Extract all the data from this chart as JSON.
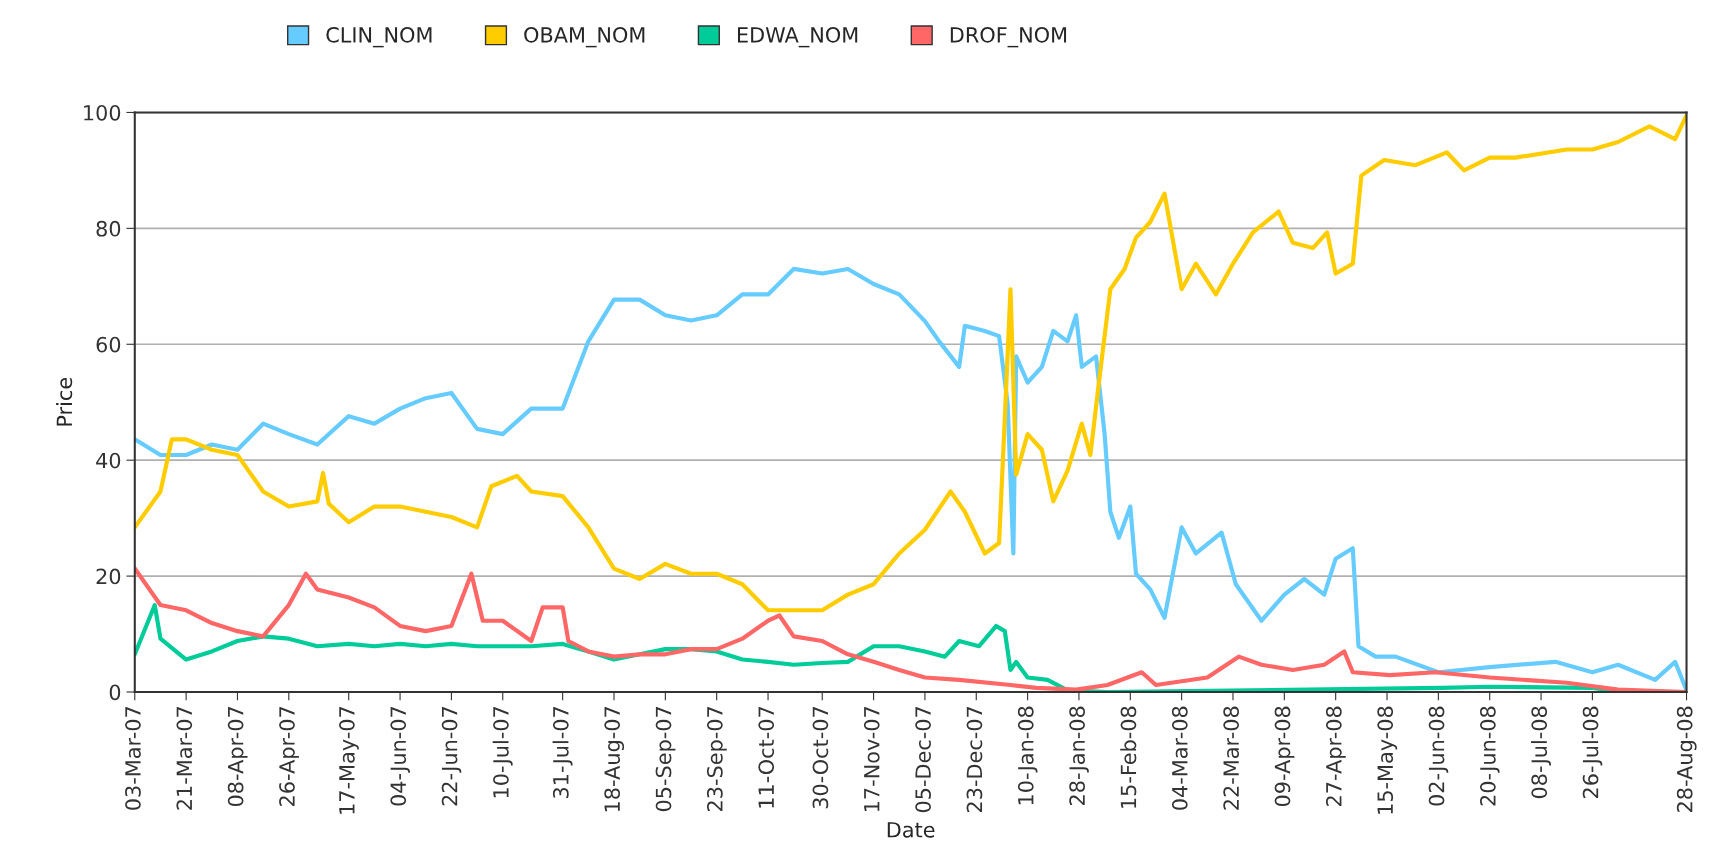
{
  "chart_data": {
    "type": "line",
    "xlabel": "Date",
    "ylabel": "Price",
    "legend": "top",
    "grid": "y",
    "marker": "none",
    "line_style": "solid",
    "xlim": [
      "2007-03-03",
      "2008-08-28"
    ],
    "ylim": [
      0,
      100
    ],
    "yticks": [
      0,
      20,
      40,
      60,
      80,
      100
    ],
    "xticks": [
      {
        "value": "2007-03-03",
        "label": "03-Mar-07"
      },
      {
        "value": "2007-03-21",
        "label": "21-Mar-07"
      },
      {
        "value": "2007-04-08",
        "label": "08-Apr-07"
      },
      {
        "value": "2007-04-26",
        "label": "26-Apr-07"
      },
      {
        "value": "2007-05-17",
        "label": "17-May-07"
      },
      {
        "value": "2007-06-04",
        "label": "04-Jun-07"
      },
      {
        "value": "2007-06-22",
        "label": "22-Jun-07"
      },
      {
        "value": "2007-07-10",
        "label": "10-Jul-07"
      },
      {
        "value": "2007-07-31",
        "label": "31-Jul-07"
      },
      {
        "value": "2007-08-18",
        "label": "18-Aug-07"
      },
      {
        "value": "2007-09-05",
        "label": "05-Sep-07"
      },
      {
        "value": "2007-09-23",
        "label": "23-Sep-07"
      },
      {
        "value": "2007-10-11",
        "label": "11-Oct-07"
      },
      {
        "value": "2007-10-30",
        "label": "30-Oct-07"
      },
      {
        "value": "2007-11-17",
        "label": "17-Nov-07"
      },
      {
        "value": "2007-12-05",
        "label": "05-Dec-07"
      },
      {
        "value": "2007-12-23",
        "label": "23-Dec-07"
      },
      {
        "value": "2008-01-10",
        "label": "10-Jan-08"
      },
      {
        "value": "2008-01-28",
        "label": "28-Jan-08"
      },
      {
        "value": "2008-02-15",
        "label": "15-Feb-08"
      },
      {
        "value": "2008-03-04",
        "label": "04-Mar-08"
      },
      {
        "value": "2008-03-22",
        "label": "22-Mar-08"
      },
      {
        "value": "2008-04-09",
        "label": "09-Apr-08"
      },
      {
        "value": "2008-04-27",
        "label": "27-Apr-08"
      },
      {
        "value": "2008-05-15",
        "label": "15-May-08"
      },
      {
        "value": "2008-06-02",
        "label": "02-Jun-08"
      },
      {
        "value": "2008-06-20",
        "label": "20-Jun-08"
      },
      {
        "value": "2008-07-08",
        "label": "08-Jul-08"
      },
      {
        "value": "2008-07-26",
        "label": "26-Jul-08"
      },
      {
        "value": "2008-08-28",
        "label": "28-Aug-08"
      }
    ],
    "series": [
      {
        "name": "CLIN_NOM",
        "color": "#66ccff",
        "x": [
          "2007-03-03",
          "2007-03-12",
          "2007-03-21",
          "2007-03-30",
          "2007-04-08",
          "2007-04-17",
          "2007-04-26",
          "2007-05-06",
          "2007-05-17",
          "2007-05-26",
          "2007-06-04",
          "2007-06-13",
          "2007-06-22",
          "2007-07-01",
          "2007-07-10",
          "2007-07-20",
          "2007-07-31",
          "2007-08-09",
          "2007-08-18",
          "2007-08-27",
          "2007-09-05",
          "2007-09-14",
          "2007-09-23",
          "2007-10-02",
          "2007-10-11",
          "2007-10-20",
          "2007-10-30",
          "2007-11-08",
          "2007-11-17",
          "2007-11-26",
          "2007-12-05",
          "2007-12-10",
          "2007-12-17",
          "2007-12-19",
          "2007-12-26",
          "2007-12-31",
          "2008-01-03",
          "2008-01-05",
          "2008-01-06",
          "2008-01-10",
          "2008-01-15",
          "2008-01-19",
          "2008-01-24",
          "2008-01-27",
          "2008-01-29",
          "2008-02-03",
          "2008-02-06",
          "2008-02-08",
          "2008-02-11",
          "2008-02-15",
          "2008-02-17",
          "2008-02-22",
          "2008-02-27",
          "2008-03-04",
          "2008-03-09",
          "2008-03-18",
          "2008-03-23",
          "2008-04-01",
          "2008-04-09",
          "2008-04-16",
          "2008-04-23",
          "2008-04-27",
          "2008-05-03",
          "2008-05-05",
          "2008-05-11",
          "2008-05-18",
          "2008-06-02",
          "2008-06-20",
          "2008-07-13",
          "2008-07-26",
          "2008-08-04",
          "2008-08-17",
          "2008-08-24",
          "2008-08-28"
        ],
        "values": [
          43.6,
          40.9,
          40.9,
          42.7,
          41.8,
          46.3,
          44.5,
          42.7,
          47.6,
          46.3,
          48.9,
          50.7,
          51.6,
          45.4,
          44.5,
          48.9,
          48.9,
          60.5,
          67.7,
          67.7,
          65.0,
          64.1,
          65.0,
          68.6,
          68.6,
          73.0,
          72.2,
          73.0,
          70.4,
          68.6,
          64.0,
          60.5,
          56.1,
          63.2,
          62.3,
          61.4,
          49.8,
          23.9,
          57.9,
          53.4,
          56.1,
          62.3,
          60.5,
          65.0,
          56.1,
          57.9,
          44.5,
          31.1,
          26.6,
          32.0,
          20.4,
          17.7,
          12.8,
          28.4,
          23.9,
          27.5,
          18.6,
          12.3,
          16.8,
          19.5,
          16.8,
          23.0,
          24.8,
          7.9,
          6.1,
          6.1,
          3.4,
          4.3,
          5.2,
          3.4,
          4.7,
          2.1,
          5.2,
          0.3
        ]
      },
      {
        "name": "OBAM_NOM",
        "color": "#ffcc00",
        "x": [
          "2007-03-03",
          "2007-03-12",
          "2007-03-16",
          "2007-03-21",
          "2007-03-30",
          "2007-04-08",
          "2007-04-17",
          "2007-04-26",
          "2007-05-06",
          "2007-05-08",
          "2007-05-10",
          "2007-05-17",
          "2007-05-26",
          "2007-06-04",
          "2007-06-13",
          "2007-06-22",
          "2007-07-01",
          "2007-07-06",
          "2007-07-15",
          "2007-07-20",
          "2007-07-31",
          "2007-08-09",
          "2007-08-18",
          "2007-08-27",
          "2007-09-05",
          "2007-09-14",
          "2007-09-23",
          "2007-10-02",
          "2007-10-11",
          "2007-10-20",
          "2007-10-30",
          "2007-11-08",
          "2007-11-17",
          "2007-11-26",
          "2007-12-05",
          "2007-12-14",
          "2007-12-19",
          "2007-12-26",
          "2007-12-31",
          "2008-01-02",
          "2008-01-04",
          "2008-01-06",
          "2008-01-10",
          "2008-01-15",
          "2008-01-19",
          "2008-01-24",
          "2008-01-29",
          "2008-02-01",
          "2008-02-04",
          "2008-02-08",
          "2008-02-13",
          "2008-02-17",
          "2008-02-22",
          "2008-02-27",
          "2008-03-04",
          "2008-03-09",
          "2008-03-16",
          "2008-03-22",
          "2008-03-29",
          "2008-04-07",
          "2008-04-12",
          "2008-04-19",
          "2008-04-24",
          "2008-04-27",
          "2008-05-03",
          "2008-05-06",
          "2008-05-14",
          "2008-05-25",
          "2008-06-05",
          "2008-06-11",
          "2008-06-20",
          "2008-06-29",
          "2008-07-17",
          "2008-07-26",
          "2008-08-04",
          "2008-08-15",
          "2008-08-24",
          "2008-08-28"
        ],
        "values": [
          28.4,
          34.6,
          43.6,
          43.6,
          41.8,
          40.9,
          34.6,
          32.0,
          32.9,
          37.8,
          32.5,
          29.3,
          32.0,
          32.0,
          31.1,
          30.2,
          28.4,
          35.5,
          37.3,
          34.6,
          33.8,
          28.4,
          21.3,
          19.5,
          22.1,
          20.4,
          20.4,
          18.6,
          14.1,
          14.1,
          14.1,
          16.8,
          18.6,
          23.9,
          28.0,
          34.6,
          31.1,
          23.9,
          25.7,
          47.1,
          69.5,
          37.5,
          44.5,
          41.8,
          32.9,
          38.2,
          46.3,
          40.9,
          53.4,
          69.5,
          73.0,
          78.4,
          81.1,
          86.0,
          69.5,
          73.9,
          68.6,
          73.9,
          79.3,
          82.9,
          77.5,
          76.6,
          79.3,
          72.2,
          73.9,
          89.1,
          91.8,
          90.9,
          93.1,
          90.0,
          92.2,
          92.2,
          93.6,
          93.6,
          94.9,
          97.6,
          95.4,
          99.5
        ]
      },
      {
        "name": "EDWA_NOM",
        "color": "#00cc99",
        "x": [
          "2007-03-03",
          "2007-03-10",
          "2007-03-12",
          "2007-03-21",
          "2007-03-30",
          "2007-04-08",
          "2007-04-17",
          "2007-04-26",
          "2007-05-06",
          "2007-05-17",
          "2007-05-26",
          "2007-06-04",
          "2007-06-13",
          "2007-06-22",
          "2007-07-01",
          "2007-07-10",
          "2007-07-20",
          "2007-07-31",
          "2007-08-09",
          "2007-08-18",
          "2007-08-27",
          "2007-09-05",
          "2007-09-14",
          "2007-09-23",
          "2007-10-02",
          "2007-10-11",
          "2007-10-20",
          "2007-10-30",
          "2007-11-08",
          "2007-11-17",
          "2007-11-26",
          "2007-12-05",
          "2007-12-12",
          "2007-12-17",
          "2007-12-24",
          "2007-12-30",
          "2008-01-02",
          "2008-01-04",
          "2008-01-06",
          "2008-01-10",
          "2008-01-17",
          "2008-01-24",
          "2008-02-07",
          "2008-06-03",
          "2008-06-20",
          "2008-07-26",
          "2008-08-07",
          "2008-08-28"
        ],
        "values": [
          6.5,
          15.0,
          9.2,
          5.6,
          7.0,
          8.8,
          9.6,
          9.2,
          7.9,
          8.3,
          7.9,
          8.3,
          7.9,
          8.3,
          7.9,
          7.9,
          7.9,
          8.3,
          7.0,
          5.6,
          6.5,
          7.4,
          7.4,
          7.0,
          5.6,
          5.2,
          4.7,
          5.0,
          5.2,
          7.9,
          7.9,
          7.0,
          6.1,
          8.8,
          7.9,
          11.4,
          10.5,
          3.8,
          5.2,
          2.5,
          2.1,
          0.3,
          0,
          0.7,
          0.9,
          0.7,
          0,
          0
        ]
      },
      {
        "name": "DROF_NOM",
        "color": "#ff6666",
        "x": [
          "2007-03-03",
          "2007-03-12",
          "2007-03-21",
          "2007-03-30",
          "2007-04-08",
          "2007-04-17",
          "2007-04-26",
          "2007-05-02",
          "2007-05-06",
          "2007-05-17",
          "2007-05-26",
          "2007-06-04",
          "2007-06-13",
          "2007-06-22",
          "2007-06-29",
          "2007-07-03",
          "2007-07-10",
          "2007-07-20",
          "2007-07-24",
          "2007-07-31",
          "2007-08-02",
          "2007-08-09",
          "2007-08-18",
          "2007-08-27",
          "2007-09-05",
          "2007-09-14",
          "2007-09-23",
          "2007-10-02",
          "2007-10-11",
          "2007-10-15",
          "2007-10-20",
          "2007-10-30",
          "2007-11-08",
          "2007-11-17",
          "2007-11-26",
          "2007-12-05",
          "2007-12-17",
          "2008-01-04",
          "2008-01-13",
          "2008-01-27",
          "2008-02-07",
          "2008-02-19",
          "2008-02-24",
          "2008-03-13",
          "2008-03-24",
          "2008-04-01",
          "2008-04-12",
          "2008-04-23",
          "2008-04-30",
          "2008-05-03",
          "2008-05-16",
          "2008-06-01",
          "2008-06-20",
          "2008-07-17",
          "2008-08-04",
          "2008-08-28"
        ],
        "values": [
          21.3,
          15.0,
          14.1,
          11.9,
          10.5,
          9.6,
          15.0,
          20.4,
          17.7,
          16.3,
          14.6,
          11.4,
          10.5,
          11.4,
          20.4,
          12.3,
          12.3,
          8.8,
          14.6,
          14.6,
          8.8,
          7.0,
          6.1,
          6.5,
          6.5,
          7.4,
          7.4,
          9.2,
          12.3,
          13.2,
          9.6,
          8.8,
          6.5,
          5.2,
          3.8,
          2.5,
          2.1,
          1.2,
          0.7,
          0.4,
          1.2,
          3.4,
          1.2,
          2.5,
          6.1,
          4.7,
          3.8,
          4.7,
          7.0,
          3.4,
          2.9,
          3.4,
          2.5,
          1.6,
          0.4,
          0
        ]
      }
    ]
  }
}
